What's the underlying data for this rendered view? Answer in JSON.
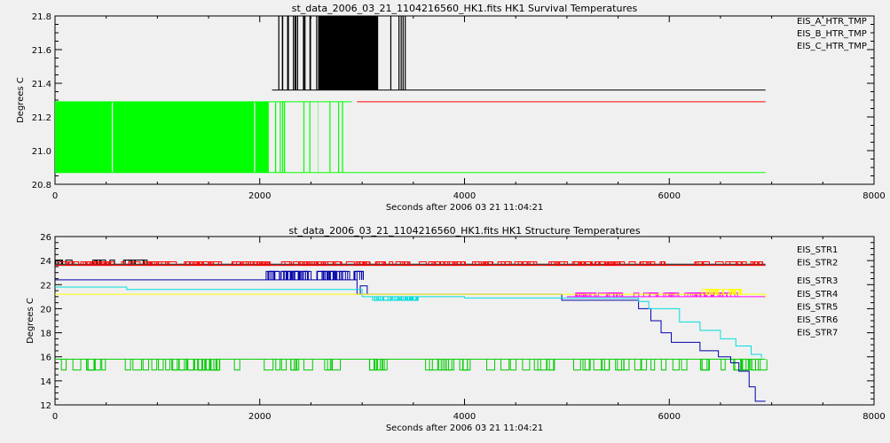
{
  "chart_data": [
    {
      "type": "line",
      "title": "st_data_2006_03_21_1104216560_HK1.fits HK1 Survival Temperatures",
      "xlabel": "Seconds after 2006 03 21 11:04:21",
      "ylabel": "Degrees C",
      "xlim": [
        0,
        8000
      ],
      "ylim": [
        20.8,
        21.8
      ],
      "xticks": [
        0,
        2000,
        4000,
        6000,
        8000
      ],
      "yticks": [
        20.8,
        21.0,
        21.2,
        21.4,
        21.6,
        21.8
      ],
      "yticklabels": [
        "20.8",
        "21.0",
        "21.2",
        "21.4",
        "21.6",
        "21.8"
      ],
      "legend_position": "top-right",
      "series": [
        {
          "name": "EIS_A_HTR_TMP",
          "color": "#000000",
          "mode": "toggle",
          "low": 21.36,
          "high": 21.8,
          "x_start": 2120,
          "x_end": 6940,
          "toggle_range": [
            2120,
            3440
          ]
        },
        {
          "name": "EIS_B_HTR_TMP",
          "color": "#ff0000",
          "mode": "constant",
          "value": 21.29,
          "x_start": 2950,
          "x_end": 6940
        },
        {
          "name": "EIS_C_HTR_TMP",
          "color": "#00ff00",
          "mode": "toggle",
          "low": 20.87,
          "high": 21.29,
          "x_start": 0,
          "x_end": 6940,
          "toggle_range": [
            0,
            2900
          ]
        }
      ]
    },
    {
      "type": "line",
      "title": "st_data_2006_03_21_1104216560_HK1.fits HK1 Structure Temperatures",
      "xlabel": "Seconds after 2006 03 21 11:04:21",
      "ylabel": "Degrees C",
      "xlim": [
        0,
        8000
      ],
      "ylim": [
        12,
        26
      ],
      "xticks": [
        0,
        2000,
        4000,
        6000,
        8000
      ],
      "yticks": [
        12,
        14,
        16,
        18,
        20,
        22,
        24,
        26
      ],
      "yticklabels": [
        "12",
        "14",
        "16",
        "18",
        "20",
        "22",
        "24",
        "26"
      ],
      "legend_position": "top-right",
      "series": [
        {
          "name": "EIS_STR1",
          "color": "#000000",
          "x": [
            0,
            6940
          ],
          "y": [
            23.7,
            23.7
          ]
        },
        {
          "name": "EIS_STR2",
          "color": "#ff0000",
          "x": [
            0,
            6940
          ],
          "y": [
            23.6,
            23.6
          ]
        },
        {
          "name": "EIS_STR3",
          "color": "#00cc00",
          "x": [
            0,
            6940
          ],
          "y": [
            15.8,
            15.8
          ]
        },
        {
          "name": "EIS_STR4",
          "color": "#0000aa",
          "x": [
            0,
            2060,
            2950,
            4700,
            4950,
            5700,
            5820,
            5920,
            6020,
            6300,
            6480,
            6600,
            6680,
            6780,
            6840,
            6940
          ],
          "y": [
            22.4,
            22.4,
            21.2,
            21.2,
            20.7,
            20.0,
            19.0,
            18.0,
            17.2,
            16.5,
            16.0,
            15.5,
            14.8,
            13.5,
            12.3,
            12.3
          ]
        },
        {
          "name": "EIS_STR5",
          "color": "#00dddd",
          "x": [
            0,
            700,
            3000,
            4000,
            5700,
            5800,
            6100,
            6300,
            6500,
            6650,
            6800,
            6900
          ],
          "y": [
            21.8,
            21.6,
            21.0,
            20.9,
            20.6,
            20.0,
            18.9,
            18.2,
            17.5,
            16.9,
            16.2,
            15.9
          ]
        },
        {
          "name": "EIS_STR6",
          "color": "#ff00ff",
          "x": [
            5000,
            6940
          ],
          "y": [
            21.0,
            21.0
          ]
        },
        {
          "name": "EIS_STR7",
          "color": "#ffff00",
          "x": [
            0,
            6940
          ],
          "y": [
            21.2,
            20.9
          ]
        }
      ]
    }
  ]
}
